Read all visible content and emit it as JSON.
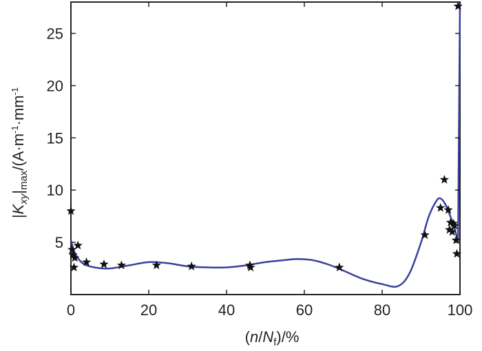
{
  "chart_data": {
    "type": "scatter",
    "xlabel": {
      "prefix": "(",
      "var_n": "n",
      "slash": "/",
      "var_N": "N",
      "sub_f": "f",
      "suffix": ")/%"
    },
    "ylabel": {
      "bar_open": "|",
      "K": "K",
      "sub_xy": "xy",
      "bar_close": "|",
      "sub_max": "max",
      "unit_open": "/(A·m",
      "sup1": "-1",
      "unit_mid": "·mm",
      "sup2": "-1"
    },
    "xlim": [
      0,
      100
    ],
    "ylim": [
      0,
      28
    ],
    "xticks": [
      0,
      20,
      40,
      60,
      80,
      100
    ],
    "yticks": [
      5,
      10,
      15,
      20,
      25
    ],
    "grid": false,
    "colors": {
      "fit_line": "#3b3f9c",
      "markers": "#111111",
      "axes": "#222222"
    },
    "series": [
      {
        "marker": "star",
        "x": [
          0,
          0.3,
          0.5,
          0.8,
          1.0,
          1.8,
          4.0,
          8.5,
          13.0,
          22.0,
          31.0,
          46.0,
          46.2,
          69.0,
          91.0,
          95.0,
          96.0,
          97.0,
          97.3,
          97.6,
          98.0,
          98.3,
          98.6,
          99.0,
          99.2,
          99.5
        ],
        "y": [
          8.0,
          4.3,
          3.8,
          2.6,
          3.5,
          4.7,
          3.1,
          2.9,
          2.8,
          2.8,
          2.7,
          2.8,
          2.6,
          2.6,
          5.7,
          8.3,
          11.0,
          8.1,
          6.2,
          6.9,
          6.0,
          6.8,
          6.6,
          5.2,
          3.9,
          27.6
        ]
      },
      {
        "type": "line",
        "x": [
          0,
          1,
          3,
          6,
          10,
          15,
          20,
          25,
          30,
          35,
          40,
          45,
          50,
          55,
          58,
          62,
          66,
          70,
          75,
          80,
          84,
          87,
          90,
          92,
          94,
          95,
          96,
          97,
          98,
          99,
          99.5,
          100
        ],
        "y": [
          5.2,
          4.0,
          3.0,
          2.6,
          2.5,
          2.8,
          3.1,
          3.0,
          2.7,
          2.6,
          2.6,
          2.8,
          3.1,
          3.3,
          3.4,
          3.3,
          2.9,
          2.3,
          1.5,
          1.0,
          0.8,
          2.0,
          5.0,
          7.5,
          9.0,
          9.2,
          8.8,
          8.0,
          7.0,
          5.8,
          5.0,
          28.0
        ]
      }
    ]
  }
}
